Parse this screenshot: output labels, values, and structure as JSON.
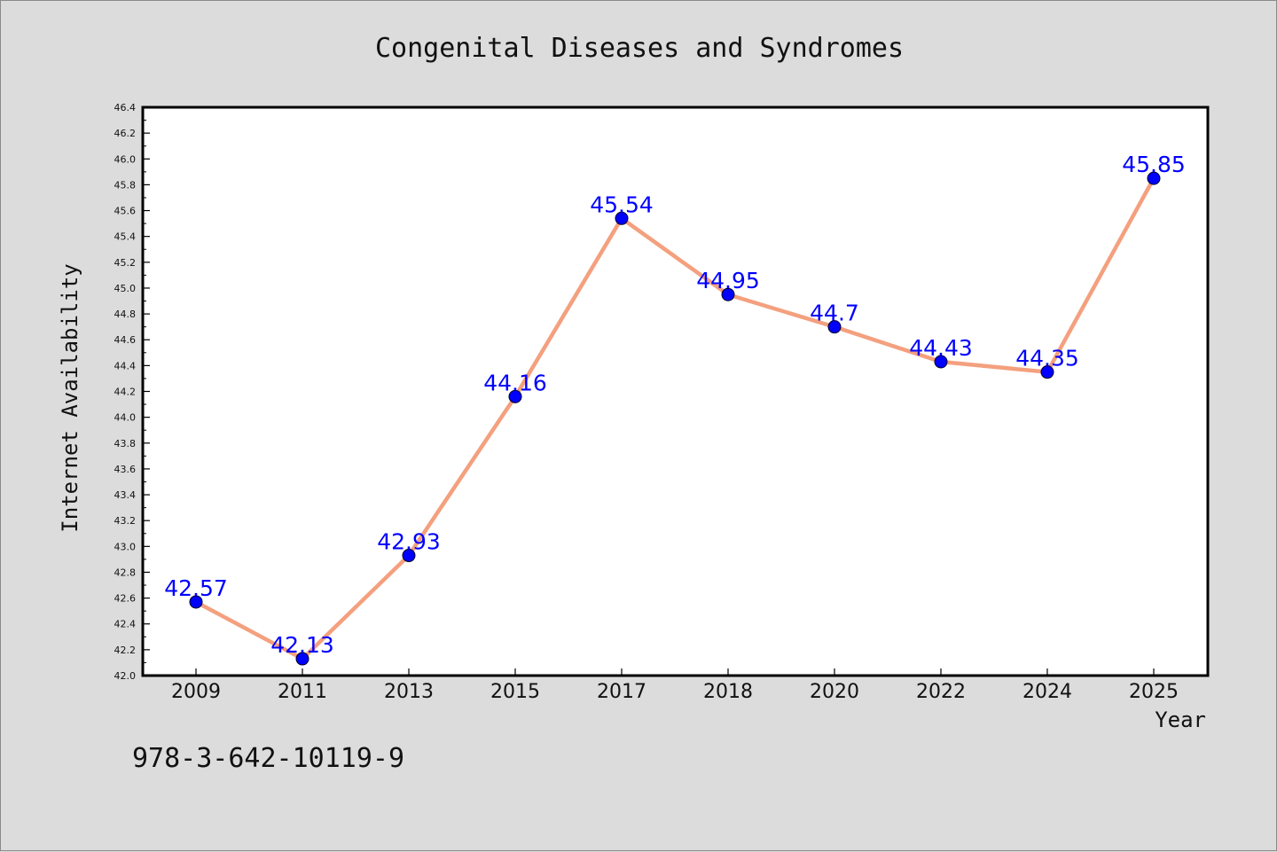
{
  "chart_data": {
    "type": "line",
    "title": "Congenital Diseases and Syndromes",
    "xlabel": "Year",
    "ylabel": "Internet Availability",
    "categories": [
      "2009",
      "2011",
      "2013",
      "2015",
      "2017",
      "2018",
      "2020",
      "2022",
      "2024",
      "2025"
    ],
    "series": [
      {
        "values": [
          42.57,
          42.13,
          42.93,
          44.16,
          45.54,
          44.95,
          44.7,
          44.43,
          44.35,
          45.85
        ],
        "labels": [
          "42.57",
          "42.13",
          "42.93",
          "44.16",
          "45.54",
          "44.95",
          "44.7",
          "44.43",
          "44.35",
          "45.85"
        ],
        "line_color": "#f4a07e",
        "marker_color": "#0000ff"
      }
    ],
    "ylim": [
      42.0,
      46.4
    ],
    "yticks": [
      "42.0",
      "42.2",
      "42.4",
      "42.6",
      "42.8",
      "43.0",
      "43.2",
      "43.4",
      "43.6",
      "43.8",
      "44.0",
      "44.2",
      "44.4",
      "44.6",
      "44.8",
      "45.0",
      "45.2",
      "45.4",
      "45.6",
      "45.8",
      "46.0",
      "46.2",
      "46.4"
    ],
    "grid": false,
    "label_color": "#0000ff"
  },
  "footer": {
    "code": "978-3-642-10119-9"
  }
}
